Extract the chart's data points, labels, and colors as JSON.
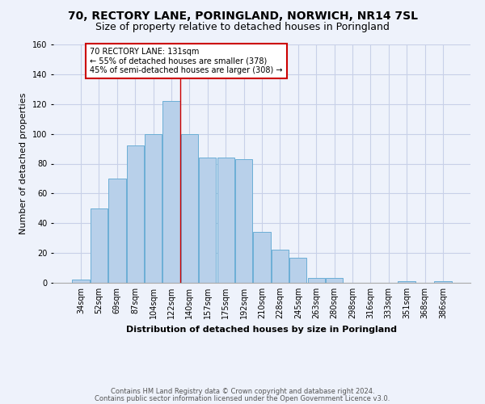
{
  "title": "70, RECTORY LANE, PORINGLAND, NORWICH, NR14 7SL",
  "subtitle": "Size of property relative to detached houses in Poringland",
  "xlabel": "Distribution of detached houses by size in Poringland",
  "ylabel": "Number of detached properties",
  "categories": [
    "34sqm",
    "52sqm",
    "69sqm",
    "87sqm",
    "104sqm",
    "122sqm",
    "140sqm",
    "157sqm",
    "175sqm",
    "192sqm",
    "210sqm",
    "228sqm",
    "245sqm",
    "263sqm",
    "280sqm",
    "298sqm",
    "316sqm",
    "333sqm",
    "351sqm",
    "368sqm",
    "386sqm"
  ],
  "values": [
    2,
    50,
    70,
    92,
    100,
    122,
    100,
    84,
    84,
    83,
    34,
    22,
    17,
    3,
    3,
    0,
    0,
    0,
    1,
    0,
    1
  ],
  "bar_color": "#b8d0ea",
  "bar_edge_color": "#6baed6",
  "vline_x": 5.5,
  "vline_color": "#cc0000",
  "annotation_title": "70 RECTORY LANE: 131sqm",
  "annotation_line1": "← 55% of detached houses are smaller (378)",
  "annotation_line2": "45% of semi-detached houses are larger (308) →",
  "annotation_box_facecolor": "#ffffff",
  "annotation_box_edgecolor": "#cc0000",
  "ylim": [
    0,
    160
  ],
  "yticks": [
    0,
    20,
    40,
    60,
    80,
    100,
    120,
    140,
    160
  ],
  "footer1": "Contains HM Land Registry data © Crown copyright and database right 2024.",
  "footer2": "Contains public sector information licensed under the Open Government Licence v3.0.",
  "background_color": "#eef2fb",
  "grid_color": "#c8d0e8",
  "title_fontsize": 10,
  "subtitle_fontsize": 9,
  "tick_fontsize": 7,
  "ylabel_fontsize": 8,
  "xlabel_fontsize": 8,
  "footer_fontsize": 6
}
